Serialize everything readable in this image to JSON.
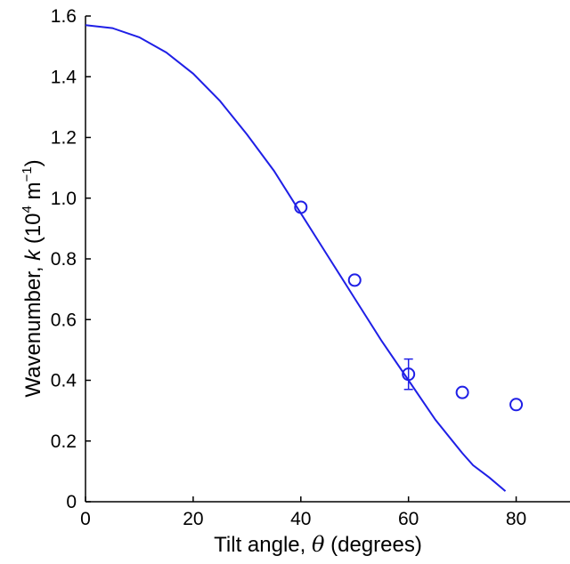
{
  "chart_data": {
    "type": "scatter",
    "xlabel": {
      "prefix": "Tilt angle, ",
      "symbol": "θ",
      "suffix": " (degrees)"
    },
    "ylabel": {
      "prefix": "Wavenumber, ",
      "symbol": "k",
      "suffix": " (10",
      "exp1": "4",
      "mid": " m",
      "exp2": "−1",
      "end": ")"
    },
    "xlim": [
      0,
      90
    ],
    "ylim": [
      0,
      1.6
    ],
    "xticks": [
      "0",
      "20",
      "40",
      "60",
      "80"
    ],
    "yticks": [
      "0",
      "0.2",
      "0.4",
      "0.6",
      "0.8",
      "1.0",
      "1.2",
      "1.4",
      "1.6"
    ],
    "grid": false,
    "colors": {
      "series": "#1f1fe6",
      "axis": "#000000"
    },
    "series": [
      {
        "type": "line",
        "x": [
          0,
          5,
          10,
          15,
          20,
          25,
          30,
          35,
          40,
          45,
          50,
          55,
          60,
          65,
          70,
          72,
          75,
          78
        ],
        "values": [
          1.57,
          1.56,
          1.53,
          1.48,
          1.41,
          1.32,
          1.21,
          1.09,
          0.95,
          0.81,
          0.67,
          0.53,
          0.4,
          0.27,
          0.16,
          0.12,
          0.08,
          0.035
        ]
      },
      {
        "type": "scatter",
        "marker": "circle-open",
        "x": [
          40,
          50,
          60,
          70,
          80
        ],
        "values": [
          0.97,
          0.73,
          0.42,
          0.36,
          0.32
        ],
        "errors": [
          null,
          null,
          0.05,
          null,
          null
        ]
      }
    ]
  }
}
